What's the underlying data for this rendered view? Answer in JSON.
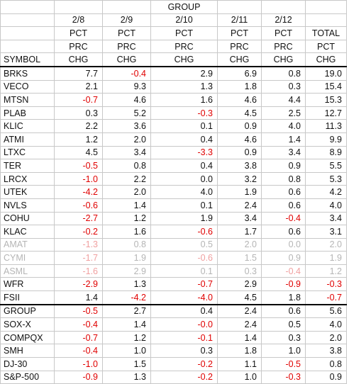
{
  "header": {
    "group_label": "GROUP",
    "dates": [
      "2/8",
      "2/9",
      "2/10",
      "2/11",
      "2/12"
    ],
    "pct": "PCT",
    "prc": "PRC",
    "chg": "CHG",
    "total": "TOTAL",
    "symbol": "SYMBOL"
  },
  "rows": [
    {
      "symbol": "BRKS",
      "v": [
        "7.7",
        "-0.4",
        "2.9",
        "6.9",
        "0.8"
      ],
      "total": "19.0",
      "faded": false,
      "sep": false
    },
    {
      "symbol": "VECO",
      "v": [
        "2.1",
        "9.3",
        "1.3",
        "1.8",
        "0.3"
      ],
      "total": "15.4",
      "faded": false,
      "sep": false
    },
    {
      "symbol": "MTSN",
      "v": [
        "-0.7",
        "4.6",
        "1.6",
        "4.6",
        "4.4"
      ],
      "total": "15.3",
      "faded": false,
      "sep": false
    },
    {
      "symbol": "PLAB",
      "v": [
        "0.3",
        "5.2",
        "-0.3",
        "4.5",
        "2.5"
      ],
      "total": "12.7",
      "faded": false,
      "sep": false
    },
    {
      "symbol": "KLIC",
      "v": [
        "2.2",
        "3.6",
        "0.1",
        "0.9",
        "4.0"
      ],
      "total": "11.3",
      "faded": false,
      "sep": false
    },
    {
      "symbol": "ATMI",
      "v": [
        "1.2",
        "2.0",
        "0.4",
        "4.6",
        "1.4"
      ],
      "total": "9.9",
      "faded": false,
      "sep": false
    },
    {
      "symbol": "LTXC",
      "v": [
        "4.5",
        "3.4",
        "-3.3",
        "0.9",
        "3.4"
      ],
      "total": "8.9",
      "faded": false,
      "sep": false
    },
    {
      "symbol": "TER",
      "v": [
        "-0.5",
        "0.8",
        "0.4",
        "3.8",
        "0.9"
      ],
      "total": "5.5",
      "faded": false,
      "sep": false
    },
    {
      "symbol": "LRCX",
      "v": [
        "-1.0",
        "2.2",
        "0.0",
        "3.2",
        "0.8"
      ],
      "total": "5.3",
      "faded": false,
      "sep": false
    },
    {
      "symbol": "UTEK",
      "v": [
        "-4.2",
        "2.0",
        "4.0",
        "1.9",
        "0.6"
      ],
      "total": "4.2",
      "faded": false,
      "sep": false
    },
    {
      "symbol": "NVLS",
      "v": [
        "-0.6",
        "1.4",
        "0.1",
        "2.4",
        "0.6"
      ],
      "total": "4.0",
      "faded": false,
      "sep": false
    },
    {
      "symbol": "COHU",
      "v": [
        "-2.7",
        "1.2",
        "1.9",
        "3.4",
        "-0.4"
      ],
      "total": "3.4",
      "faded": false,
      "sep": false
    },
    {
      "symbol": "KLAC",
      "v": [
        "-0.2",
        "1.6",
        "-0.6",
        "1.7",
        "0.6"
      ],
      "total": "3.1",
      "faded": false,
      "sep": false
    },
    {
      "symbol": "AMAT",
      "v": [
        "-1.3",
        "0.8",
        "0.5",
        "2.0",
        "0.0"
      ],
      "total": "2.0",
      "faded": true,
      "sep": false
    },
    {
      "symbol": "CYMI",
      "v": [
        "-1.7",
        "1.9",
        "-0.6",
        "1.5",
        "0.9"
      ],
      "total": "1.9",
      "faded": true,
      "sep": false
    },
    {
      "symbol": "ASML",
      "v": [
        "-1.6",
        "2.9",
        "0.1",
        "0.3",
        "-0.4"
      ],
      "total": "1.2",
      "faded": true,
      "sep": false
    },
    {
      "symbol": "WFR",
      "v": [
        "-2.9",
        "1.3",
        "-0.7",
        "2.9",
        "-0.9"
      ],
      "total": "-0.3",
      "faded": false,
      "sep": false
    },
    {
      "symbol": "FSII",
      "v": [
        "1.4",
        "-4.2",
        "-4.0",
        "4.5",
        "1.8"
      ],
      "total": "-0.7",
      "faded": false,
      "sep": false
    },
    {
      "symbol": "GROUP",
      "v": [
        "-0.5",
        "2.7",
        "0.4",
        "2.4",
        "0.6"
      ],
      "total": "5.6",
      "faded": false,
      "sep": true
    },
    {
      "symbol": "SOX-X",
      "v": [
        "-0.4",
        "1.4",
        "-0.0",
        "2.4",
        "0.5"
      ],
      "total": "4.0",
      "faded": false,
      "sep": false
    },
    {
      "symbol": "COMPQX",
      "v": [
        "-0.7",
        "1.2",
        "-0.1",
        "1.4",
        "0.3"
      ],
      "total": "2.0",
      "faded": false,
      "sep": false
    },
    {
      "symbol": "SMH",
      "v": [
        "-0.4",
        "1.0",
        "0.3",
        "1.8",
        "1.0"
      ],
      "total": "3.8",
      "faded": false,
      "sep": false
    },
    {
      "symbol": "DJ-30",
      "v": [
        "-1.0",
        "1.5",
        "-0.2",
        "1.1",
        "-0.5"
      ],
      "total": "0.8",
      "faded": false,
      "sep": false
    },
    {
      "symbol": "S&P-500",
      "v": [
        "-0.9",
        "1.3",
        "-0.2",
        "1.0",
        "-0.3"
      ],
      "total": "0.9",
      "faded": false,
      "sep": false
    }
  ],
  "colors": {
    "negative": "#e00000",
    "positive": "#111111",
    "faded": "#b5b5b5"
  }
}
